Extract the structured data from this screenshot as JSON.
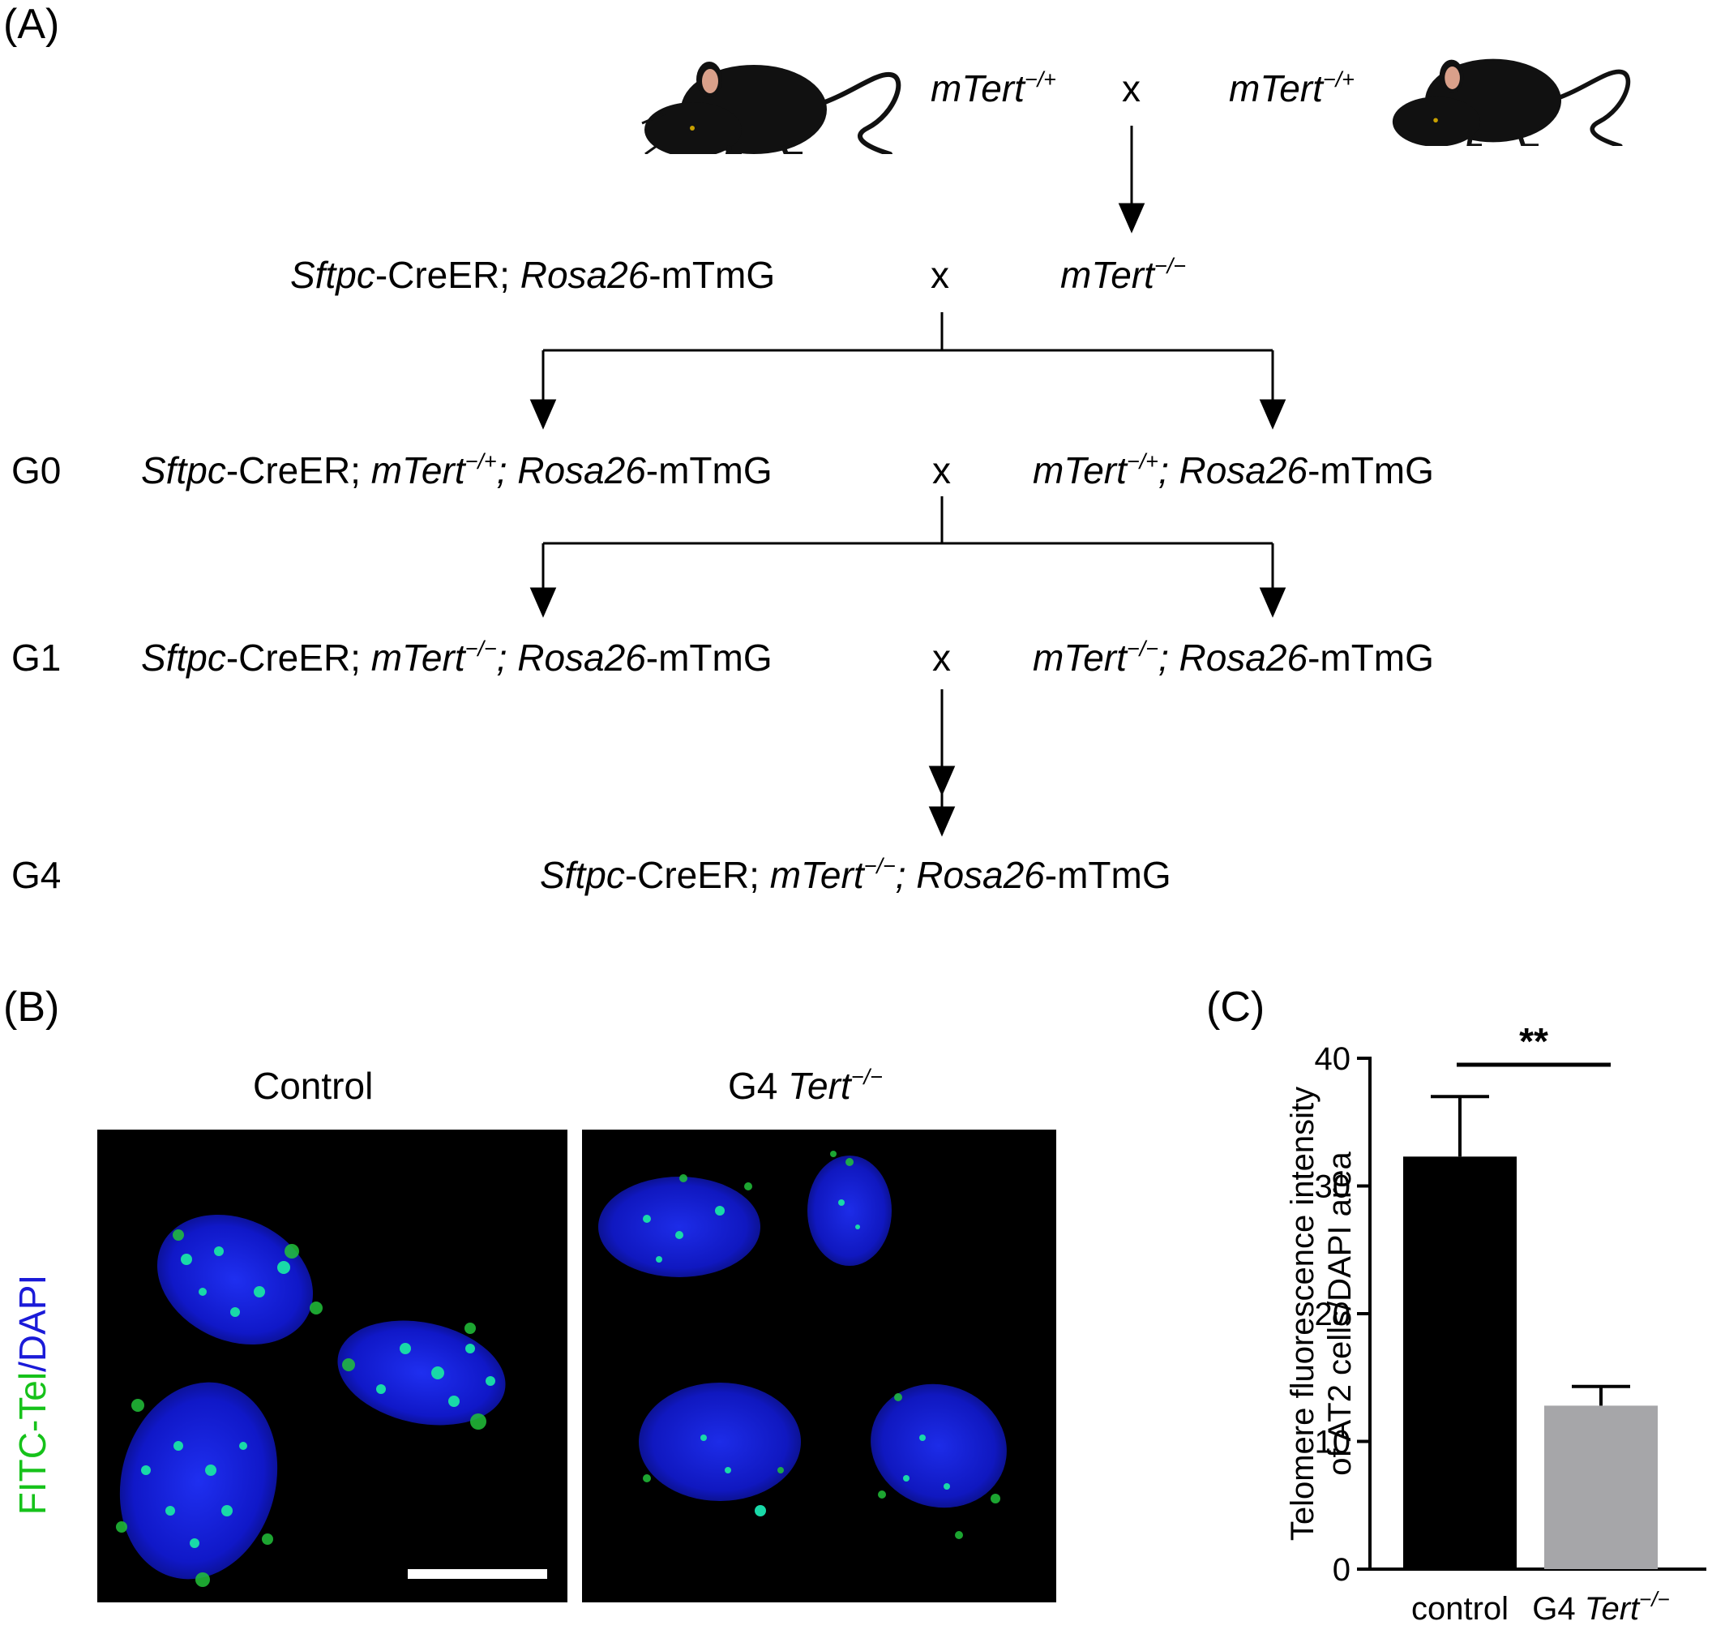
{
  "panelA": {
    "label": "(A)",
    "parents": {
      "left_genotype": "mTert",
      "left_sup": "−/+",
      "cross": "x",
      "right_genotype": "mTert",
      "right_sup": "−/+"
    },
    "row1": {
      "left_a": "Sftpc",
      "left_b": "-CreER; ",
      "left_c": "Rosa26",
      "left_d": "-mTmG",
      "cross": "x",
      "right_a": "mTert",
      "right_sup": "−/−"
    },
    "g0": {
      "gen": "G0",
      "left_a": "Sftpc",
      "left_b": "-CreER; ",
      "left_c": "mTert",
      "left_sup": "−/+",
      "left_d": "; Rosa26",
      "left_e": "-mTmG",
      "cross": "x",
      "right_a": "mTert",
      "right_sup": "−/+",
      "right_b": "; Rosa26",
      "right_c": "-mTmG"
    },
    "g1": {
      "gen": "G1",
      "left_a": "Sftpc",
      "left_b": "-CreER; ",
      "left_c": "mTert",
      "left_sup": "−/−",
      "left_d": "; Rosa26",
      "left_e": "-mTmG",
      "cross": "x",
      "right_a": "mTert",
      "right_sup": "−/−",
      "right_b": "; Rosa26",
      "right_c": "-mTmG"
    },
    "g4": {
      "gen": "G4",
      "a": "Sftpc",
      "b": "-CreER; ",
      "c": "mTert",
      "sup": "−/−",
      "d": "; Rosa26",
      "e": "-mTmG"
    }
  },
  "panelB": {
    "label": "(B)",
    "control_title": "Control",
    "g4_title_prefix": "G4 ",
    "g4_title_italic": "Tert",
    "g4_title_sup": "−/−",
    "stain_green": "FITC-Tel",
    "stain_sep": "/",
    "stain_blue": "DAPI",
    "green_color": "#16c21a",
    "blue_color": "#1a1ad8"
  },
  "panelC": {
    "label": "(C)",
    "significance": "**",
    "chart_data": {
      "type": "bar",
      "categories": [
        "control",
        "G4 Tert−/−"
      ],
      "category_labels": [
        {
          "prefix": "control",
          "italic": "",
          "sup": ""
        },
        {
          "prefix": "G4 ",
          "italic": "Tert",
          "sup": "−/−"
        }
      ],
      "values": [
        32.3,
        12.8
      ],
      "errors": [
        4.7,
        1.5
      ],
      "bar_colors": [
        "#000000",
        "#a6a6a9"
      ],
      "ylabel_line1": "Telomere fluorescence intensity",
      "ylabel_line2": "of AT2 cells/DAPI area",
      "ylim": [
        0,
        40
      ],
      "yticks": [
        0,
        10,
        20,
        30,
        40
      ],
      "ytick_labels": [
        "0",
        "10",
        "20",
        "30",
        "40"
      ]
    }
  }
}
